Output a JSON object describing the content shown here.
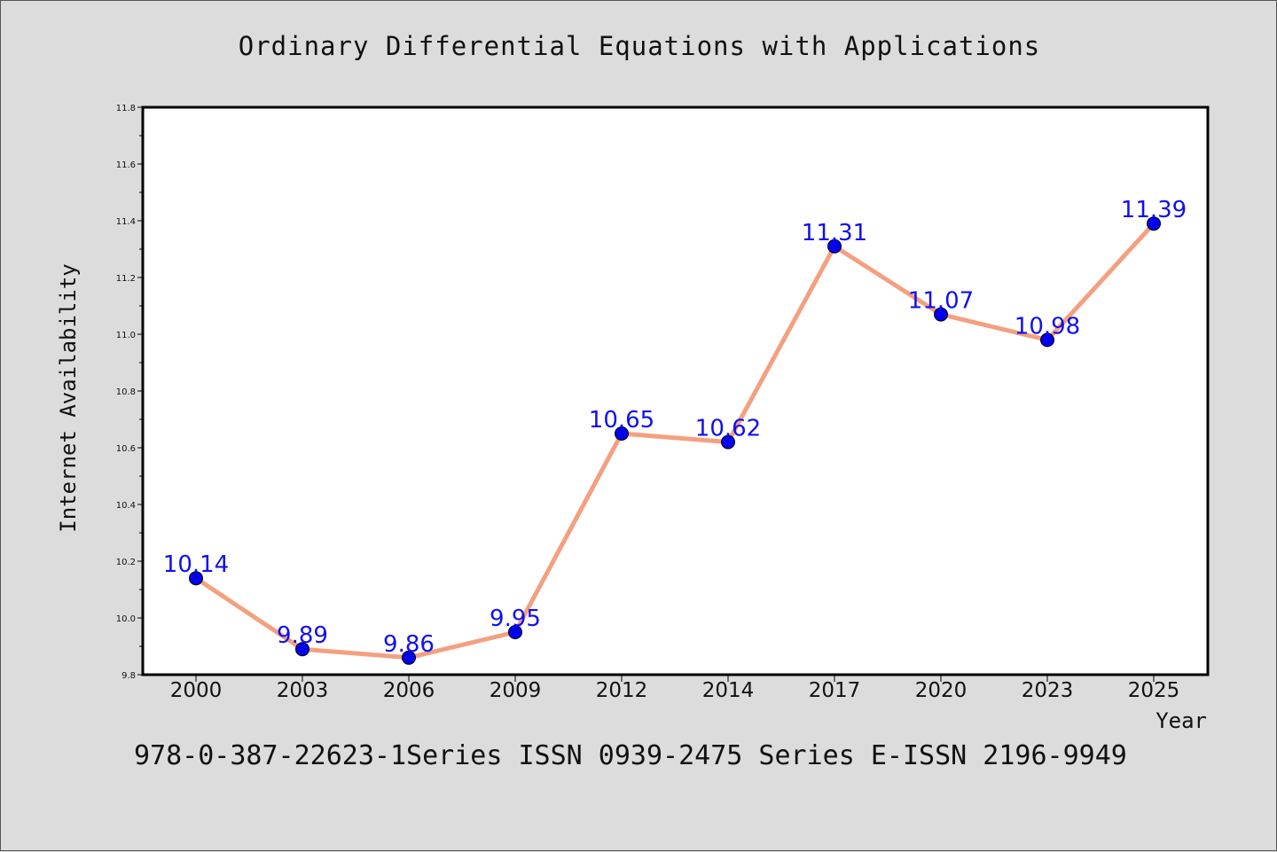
{
  "title": "Ordinary Differential Equations with Applications",
  "footer": "978-0-387-22623-1Series ISSN 0939-2475 Series E-ISSN 2196-9949",
  "colors": {
    "background": "#dcdcdc",
    "plot_background": "#ffffff",
    "line": "#f4a080",
    "marker": "#0000ee",
    "data_label": "#1010ee"
  },
  "chart_data": {
    "type": "line",
    "xlabel": "Year",
    "ylabel": "Internet Availability",
    "categories": [
      "2000",
      "2003",
      "2006",
      "2009",
      "2012",
      "2014",
      "2017",
      "2020",
      "2023",
      "2025"
    ],
    "series": [
      {
        "values": [
          10.14,
          9.89,
          9.86,
          9.95,
          10.65,
          10.62,
          11.31,
          11.07,
          10.98,
          11.39
        ],
        "labels": [
          "10.14",
          "9.89",
          "9.86",
          "9.95",
          "10.65",
          "10.62",
          "11.31",
          "11.07",
          "10.98",
          "11.39"
        ]
      }
    ],
    "ylim": [
      9.8,
      11.8
    ],
    "y_ticks": [
      "9.8",
      "10.0",
      "10.2",
      "10.4",
      "10.6",
      "10.8",
      "11.0",
      "11.2",
      "11.4",
      "11.6",
      "11.8"
    ],
    "grid": false,
    "legend": "none"
  }
}
